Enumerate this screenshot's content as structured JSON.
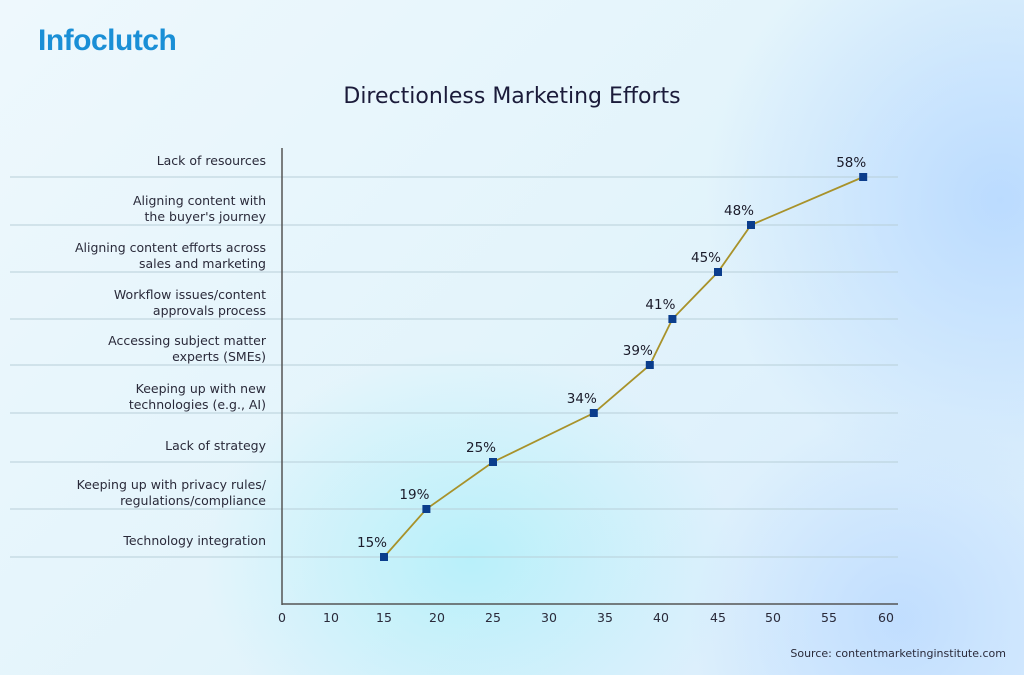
{
  "brand": {
    "logo_text": "Infoclutch",
    "color": "#1a8fd6"
  },
  "source": "Source: contentmarketinginstitute.com",
  "chart_data": {
    "type": "line",
    "title": "Directionless Marketing Efforts",
    "categories": [
      [
        "Lack of resources"
      ],
      [
        "Aligning content with",
        "the buyer's journey"
      ],
      [
        "Aligning content efforts across",
        "sales and marketing"
      ],
      [
        "Workflow issues/content",
        "approvals process"
      ],
      [
        "Accessing subject matter",
        "experts (SMEs)"
      ],
      [
        "Keeping up with new",
        "technologies (e.g., AI)"
      ],
      [
        "Lack of strategy"
      ],
      [
        "Keeping up with privacy rules/",
        "regulations/compliance"
      ],
      [
        "Technology integration"
      ]
    ],
    "values": [
      58,
      48,
      45,
      41,
      39,
      34,
      25,
      19,
      15
    ],
    "data_labels": [
      "58%",
      "48%",
      "45%",
      "41%",
      "39%",
      "34%",
      "25%",
      "19%",
      "15%"
    ],
    "x_ticks": [
      0,
      10,
      15,
      20,
      25,
      30,
      35,
      40,
      45,
      50,
      55,
      60
    ],
    "xlim": [
      0,
      60
    ],
    "grid": "horizontal",
    "line_color": "#a8922a",
    "marker_color": "#0b3d8c"
  }
}
